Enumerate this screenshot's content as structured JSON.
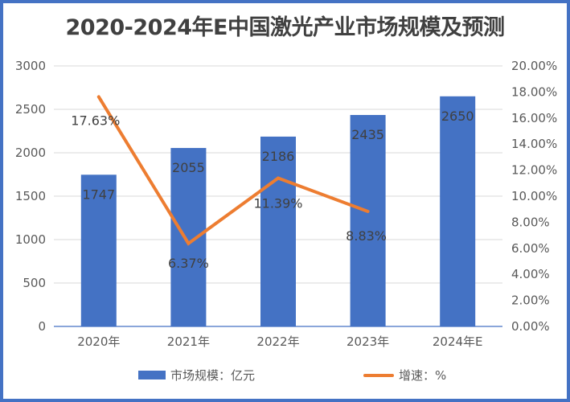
{
  "title": "2020-2024年E中国激光产业市场规模及预测",
  "chart_data": {
    "type": "bar+line",
    "title": "2020-2024年E中国激光产业市场规模及预测",
    "categories": [
      "2020年",
      "2021年",
      "2022年",
      "2023年",
      "2024年E"
    ],
    "series": [
      {
        "name": "市场规模：亿元",
        "type": "bar",
        "axis": "left",
        "color": "#4472c4",
        "values": [
          1747,
          2055,
          2186,
          2435,
          2650
        ],
        "labels": [
          "1747",
          "2055",
          "2186",
          "2435",
          "2650"
        ]
      },
      {
        "name": "增速：%",
        "type": "line",
        "axis": "right",
        "color": "#ed7d31",
        "values": [
          17.63,
          6.37,
          11.39,
          8.83,
          null
        ],
        "labels": [
          "17.63%",
          "6.37%",
          "11.39%",
          "8.83%",
          ""
        ]
      }
    ],
    "left_axis": {
      "ylim": [
        0,
        3000
      ],
      "ticks": [
        "0",
        "500",
        "1000",
        "1500",
        "2000",
        "2500",
        "3000"
      ]
    },
    "right_axis": {
      "ylim": [
        0,
        20
      ],
      "ticks": [
        "0.00%",
        "2.00%",
        "4.00%",
        "6.00%",
        "8.00%",
        "10.00%",
        "12.00%",
        "14.00%",
        "16.00%",
        "18.00%",
        "20.00%"
      ]
    },
    "grid": true,
    "legend_position": "bottom"
  },
  "legend": {
    "bar_label": "市场规模：亿元",
    "line_label": "增速：%"
  },
  "colors": {
    "bar": "#4472c4",
    "line": "#ed7d31",
    "border": "#4472c4"
  }
}
